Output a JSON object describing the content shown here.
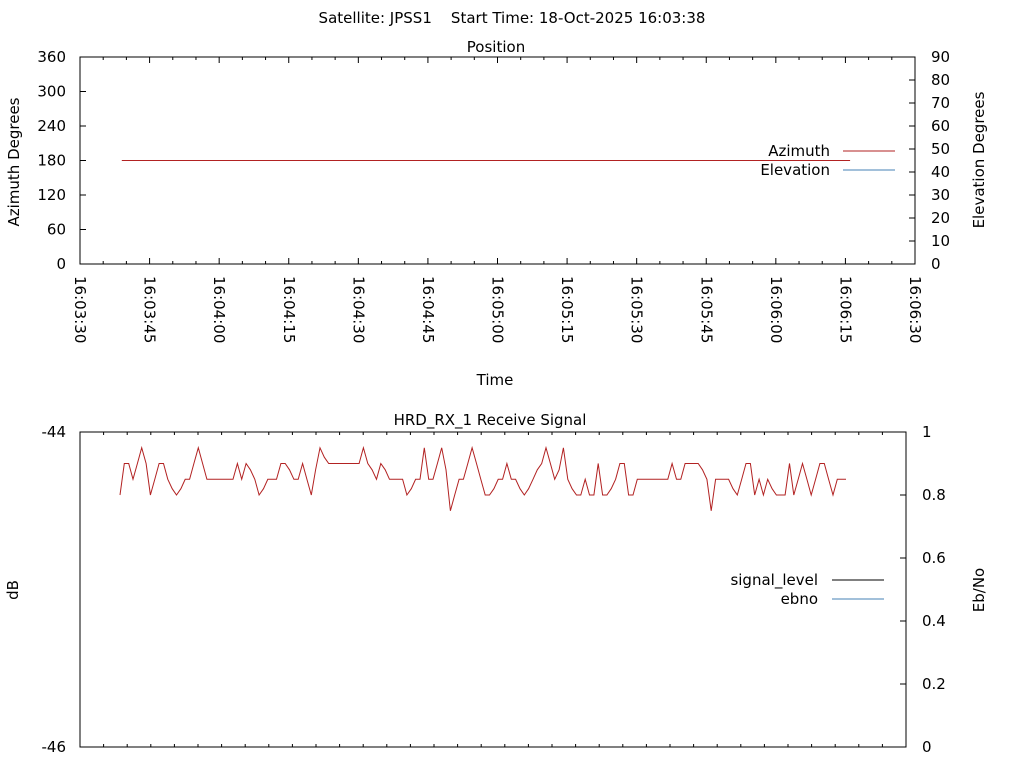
{
  "figure": {
    "header": "Satellite: JPSS1    Start Time: 18-Oct-2025 16:03:38"
  },
  "chart_data": [
    {
      "type": "line",
      "title": "Position",
      "xlabel": "Time",
      "ylabel": "Azimuth Degrees",
      "y2label": "Elevation Degrees",
      "x_ticks": [
        "16:03:30",
        "16:03:45",
        "16:04:00",
        "16:04:15",
        "16:04:30",
        "16:04:45",
        "16:05:00",
        "16:05:15",
        "16:05:30",
        "16:05:45",
        "16:06:00",
        "16:06:15",
        "16:06:30"
      ],
      "xlim": [
        "16:03:30",
        "16:06:30"
      ],
      "ylim": [
        0,
        360
      ],
      "y_ticks": [
        "0",
        "60",
        "120",
        "180",
        "240",
        "300",
        "360"
      ],
      "y2lim": [
        0,
        90
      ],
      "y2_ticks": [
        "0",
        "10",
        "20",
        "30",
        "40",
        "50",
        "60",
        "70",
        "80",
        "90"
      ],
      "legend_position": "right",
      "series": [
        {
          "name": "Azimuth",
          "color": "#b22222",
          "axis": "y",
          "x": [
            "16:03:39",
            "16:06:16"
          ],
          "values": [
            180,
            180
          ]
        },
        {
          "name": "Elevation",
          "color": "#4682b4",
          "axis": "y2",
          "x": [],
          "values": []
        }
      ]
    },
    {
      "type": "line",
      "title": "HRD_RX_1 Receive Signal",
      "ylabel": "dB",
      "y2label": "Eb/No",
      "ylim": [
        -46,
        -44
      ],
      "y_ticks": [
        "-44",
        "-46"
      ],
      "y2lim": [
        0,
        1
      ],
      "y2_ticks": [
        "0",
        "0.2",
        "0.4",
        "0.6",
        "0.8",
        "1"
      ],
      "legend_position": "right",
      "series": [
        {
          "name": "signal_level",
          "color": "#000000",
          "axis": "y",
          "values": []
        },
        {
          "name": "ebno",
          "color": "#4682b4",
          "axis": "y2",
          "values": []
        }
      ],
      "observed_trace": {
        "color": "#b22222",
        "axis": "y2",
        "values": [
          0.8,
          0.9,
          0.9,
          0.85,
          0.9,
          0.95,
          0.9,
          0.8,
          0.85,
          0.9,
          0.9,
          0.85,
          0.82,
          0.8,
          0.82,
          0.85,
          0.85,
          0.9,
          0.95,
          0.9,
          0.85,
          0.85,
          0.85,
          0.85,
          0.85,
          0.85,
          0.85,
          0.9,
          0.85,
          0.9,
          0.88,
          0.85,
          0.8,
          0.82,
          0.85,
          0.85,
          0.85,
          0.9,
          0.9,
          0.88,
          0.85,
          0.85,
          0.9,
          0.85,
          0.8,
          0.88,
          0.95,
          0.92,
          0.9,
          0.9,
          0.9,
          0.9,
          0.9,
          0.9,
          0.9,
          0.9,
          0.95,
          0.9,
          0.88,
          0.85,
          0.9,
          0.88,
          0.85,
          0.85,
          0.85,
          0.85,
          0.8,
          0.82,
          0.85,
          0.85,
          0.95,
          0.85,
          0.85,
          0.9,
          0.95,
          0.88,
          0.75,
          0.8,
          0.85,
          0.85,
          0.9,
          0.95,
          0.9,
          0.85,
          0.8,
          0.8,
          0.82,
          0.85,
          0.85,
          0.9,
          0.85,
          0.85,
          0.82,
          0.8,
          0.82,
          0.85,
          0.88,
          0.9,
          0.95,
          0.9,
          0.85,
          0.88,
          0.95,
          0.85,
          0.82,
          0.8,
          0.8,
          0.85,
          0.8,
          0.8,
          0.9,
          0.8,
          0.8,
          0.82,
          0.85,
          0.9,
          0.9,
          0.8,
          0.8,
          0.85,
          0.85,
          0.85,
          0.85,
          0.85,
          0.85,
          0.85,
          0.85,
          0.9,
          0.85,
          0.85,
          0.9,
          0.9,
          0.9,
          0.9,
          0.88,
          0.85,
          0.75,
          0.85,
          0.85,
          0.85,
          0.85,
          0.82,
          0.8,
          0.85,
          0.9,
          0.9,
          0.8,
          0.85,
          0.8,
          0.85,
          0.82,
          0.8,
          0.8,
          0.8,
          0.9,
          0.8,
          0.85,
          0.9,
          0.85,
          0.8,
          0.85,
          0.9,
          0.9,
          0.85,
          0.8,
          0.85,
          0.85,
          0.85
        ]
      }
    }
  ]
}
